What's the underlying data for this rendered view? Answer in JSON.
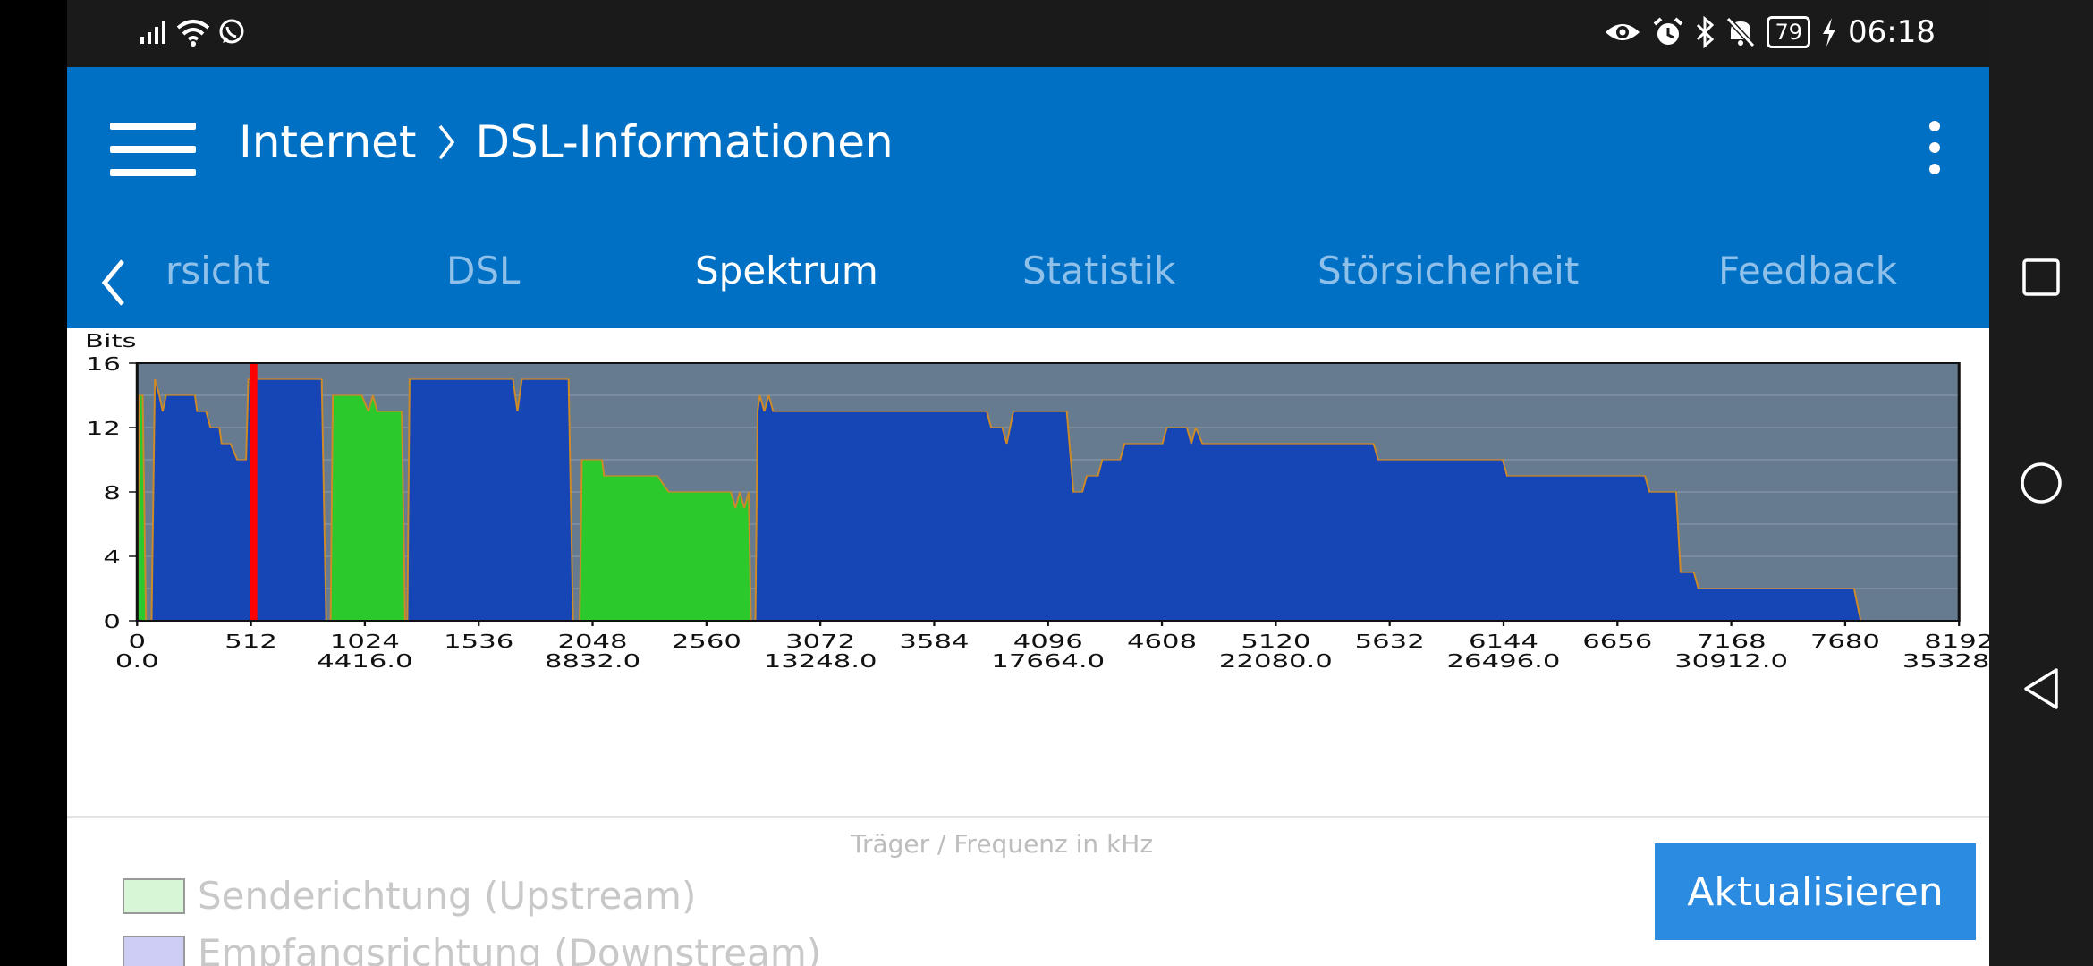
{
  "status_bar": {
    "time": "06:18",
    "battery": "79",
    "left_icons": [
      "signal-icon",
      "wifi-icon",
      "whatsapp-icon"
    ],
    "right_icons": [
      "eye-icon",
      "alarm-icon",
      "bluetooth-icon",
      "mute-icon",
      "battery-icon",
      "charging-icon"
    ]
  },
  "header": {
    "breadcrumb_parent": "Internet",
    "breadcrumb_separator": ">",
    "title": "DSL-Informationen",
    "color": "#0070c4"
  },
  "tabs": {
    "items": [
      {
        "label": "rsicht"
      },
      {
        "label": "DSL"
      },
      {
        "label": "Spektrum",
        "active": true
      },
      {
        "label": "Statistik"
      },
      {
        "label": "Störsicherheit"
      },
      {
        "label": "Feedback"
      }
    ],
    "indicator_color": "#f0e629"
  },
  "chart_data": {
    "type": "area",
    "ylabel": "Bits",
    "xlabel": "Träger / Frequenz in kHz",
    "ylim": [
      0,
      16
    ],
    "xlim": [
      0,
      8192
    ],
    "yticks": [
      "0",
      "4",
      "8",
      "12",
      "16"
    ],
    "xticks": [
      "0",
      "512",
      "1024",
      "1536",
      "2048",
      "2560",
      "3072",
      "3584",
      "4096",
      "4608",
      "5120",
      "5632",
      "6144",
      "6656",
      "7168",
      "7680",
      "8192"
    ],
    "xticks_freq": [
      "0.0",
      "4416.0",
      "8832.0",
      "13248.0",
      "17664.0",
      "22080.0",
      "26496.0",
      "30912.0",
      "35328.0"
    ],
    "grid": true,
    "marker_line_x": 525,
    "colors": {
      "background": "#667b8f",
      "upstream": "#2bc92b",
      "downstream": "#1646b5",
      "outline": "#cd8a28",
      "marker": "#ff0000"
    },
    "series": [
      {
        "name": "Senderichtung (Upstream)",
        "segments": [
          [
            [
              0,
              0
            ],
            [
              10,
              14
            ],
            [
              25,
              14
            ],
            [
              40,
              0
            ]
          ],
          [
            [
              870,
              0
            ],
            [
              880,
              14
            ],
            [
              1010,
              14
            ],
            [
              1040,
              13
            ],
            [
              1060,
              14
            ],
            [
              1080,
              13
            ],
            [
              1190,
              13
            ],
            [
              1205,
              0
            ]
          ],
          [
            [
              1990,
              0
            ],
            [
              2000,
              10
            ],
            [
              2090,
              10
            ],
            [
              2100,
              9
            ],
            [
              2340,
              9
            ],
            [
              2390,
              8
            ],
            [
              2670,
              8
            ],
            [
              2690,
              7
            ],
            [
              2710,
              8
            ],
            [
              2730,
              7
            ],
            [
              2750,
              8
            ],
            [
              2760,
              0
            ]
          ]
        ]
      },
      {
        "name": "Empfangsrichtung (Downstream)",
        "segments": [
          [
            [
              65,
              0
            ],
            [
              80,
              15
            ],
            [
              100,
              14
            ],
            [
              115,
              13
            ],
            [
              130,
              14
            ],
            [
              260,
              14
            ],
            [
              270,
              13
            ],
            [
              310,
              13
            ],
            [
              330,
              12
            ],
            [
              370,
              12
            ],
            [
              380,
              11
            ],
            [
              420,
              11
            ],
            [
              450,
              10
            ],
            [
              490,
              10
            ],
            [
              500,
              15
            ],
            [
              830,
              15
            ],
            [
              850,
              0
            ]
          ],
          [
            [
              1215,
              0
            ],
            [
              1225,
              15
            ],
            [
              1690,
              15
            ],
            [
              1710,
              13
            ],
            [
              1730,
              15
            ],
            [
              1940,
              15
            ],
            [
              1960,
              0
            ]
          ],
          [
            [
              2780,
              0
            ],
            [
              2790,
              13
            ],
            [
              2800,
              14
            ],
            [
              2820,
              13
            ],
            [
              2840,
              14
            ],
            [
              2860,
              13
            ],
            [
              3820,
              13
            ],
            [
              3840,
              12
            ],
            [
              3890,
              12
            ],
            [
              3910,
              11
            ],
            [
              3940,
              13
            ],
            [
              4180,
              13
            ],
            [
              4210,
              8
            ],
            [
              4250,
              8
            ],
            [
              4270,
              9
            ],
            [
              4320,
              9
            ],
            [
              4340,
              10
            ],
            [
              4420,
              10
            ],
            [
              4440,
              11
            ],
            [
              4610,
              11
            ],
            [
              4630,
              12
            ],
            [
              4720,
              12
            ],
            [
              4740,
              11
            ],
            [
              4760,
              12
            ],
            [
              4790,
              11
            ],
            [
              5560,
              11
            ],
            [
              5580,
              10
            ],
            [
              6140,
              10
            ],
            [
              6160,
              9
            ],
            [
              6780,
              9
            ],
            [
              6800,
              8
            ],
            [
              6920,
              8
            ],
            [
              6940,
              3
            ],
            [
              7000,
              3
            ],
            [
              7020,
              2
            ],
            [
              7720,
              2
            ],
            [
              7750,
              0
            ]
          ]
        ]
      }
    ]
  },
  "legend": {
    "items": [
      {
        "label": "Senderichtung (Upstream)",
        "color": "#d6f6d6"
      },
      {
        "label": "Empfangsrichtung (Downstream)",
        "color": "#cdcdf5"
      }
    ]
  },
  "actions": {
    "refresh_label": "Aktualisieren"
  }
}
